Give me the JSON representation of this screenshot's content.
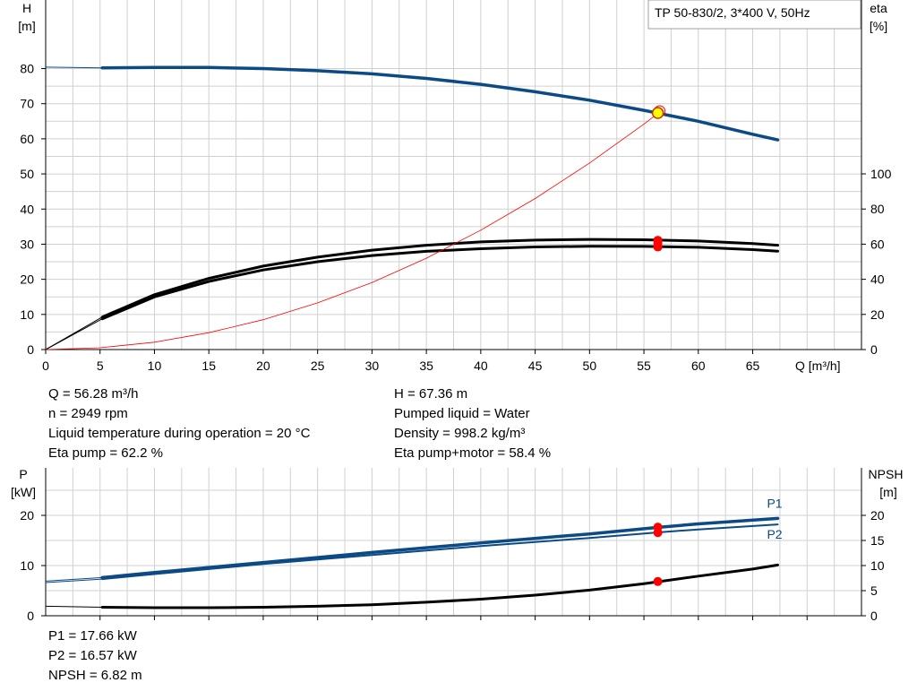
{
  "colors": {
    "head_curve": "#0c4a86",
    "efficiency_curve": "#000000",
    "power_curve": "#0c4a86",
    "npsh_curve": "#000000",
    "system_curve": "#ff0000",
    "grid": "#d0d0d0",
    "marker_fill": "#ff0000",
    "duty_point_fill": "#ffff00"
  },
  "info_top_left": [
    "Q = 56.28 m³/h",
    "n = 2949 rpm",
    "Liquid temperature during operation = 20 °C",
    "Eta pump = 62.2 %"
  ],
  "info_top_right": [
    "H = 67.36 m",
    "Pumped liquid = Water",
    "Density = 998.2 kg/m³",
    "Eta pump+motor = 58.4 %"
  ],
  "info_bottom": [
    "P1 = 17.66 kW",
    "P2 = 16.57 kW",
    "NPSH = 6.82 m"
  ],
  "chart_data": [
    {
      "type": "line",
      "title": "TP 50-830/2, 3*400 V, 50Hz",
      "left_axis_name": "H",
      "left_axis_unit": "[m]",
      "right_axis_name": "eta",
      "right_axis_unit": "[%]",
      "xlabel": "Q [m³/h]",
      "xlim": [
        0,
        75
      ],
      "ylim_left": [
        0,
        80
      ],
      "ylim_right": [
        0,
        100
      ],
      "x_ticks": [
        0,
        5,
        10,
        15,
        20,
        25,
        30,
        35,
        40,
        45,
        50,
        55,
        60,
        65
      ],
      "y_ticks_left": [
        0,
        10,
        20,
        30,
        40,
        50,
        60,
        70,
        80
      ],
      "y_ticks_right": [
        0,
        20,
        40,
        60,
        80,
        100
      ],
      "grid": true,
      "series": [
        {
          "key": "H",
          "axis": "left",
          "color_key": "head_curve",
          "width": 3.5,
          "x": [
            0,
            5.2,
            10,
            15,
            20,
            25,
            30,
            35,
            40,
            45,
            50,
            55,
            60,
            65,
            67.3
          ],
          "y": [
            80.4,
            80.2,
            80.3,
            80.3,
            80.0,
            79.4,
            78.5,
            77.2,
            75.5,
            73.4,
            71.0,
            68.1,
            65.0,
            61.3,
            59.7
          ]
        },
        {
          "key": "eta_pump",
          "axis": "right",
          "color_key": "efficiency_curve",
          "width": 3,
          "x": [
            0,
            5.2,
            10,
            15,
            20,
            25,
            30,
            35,
            40,
            45,
            50,
            55,
            60,
            65,
            67.3
          ],
          "y": [
            0,
            18.5,
            31.2,
            40.5,
            47.5,
            52.6,
            56.6,
            59.4,
            61.3,
            62.3,
            62.7,
            62.5,
            61.8,
            60.3,
            59.4
          ]
        },
        {
          "key": "eta_pump_motor",
          "axis": "right",
          "color_key": "efficiency_curve",
          "width": 3,
          "x": [
            0,
            5.2,
            10,
            15,
            20,
            25,
            30,
            35,
            40,
            45,
            50,
            55,
            60,
            65,
            67.3
          ],
          "y": [
            0,
            17.5,
            30.0,
            38.8,
            45.3,
            50.0,
            53.5,
            55.9,
            57.4,
            58.4,
            58.8,
            58.7,
            58.2,
            56.9,
            56.0
          ]
        },
        {
          "key": "system_curve",
          "axis": "left",
          "color_key": "system_curve",
          "width": 0.8,
          "x": [
            0,
            5,
            10,
            15,
            20,
            25,
            30,
            35,
            40,
            45,
            50,
            55,
            56.6
          ],
          "y": [
            0,
            0.5,
            2.1,
            4.8,
            8.5,
            13.3,
            19.1,
            26.0,
            34.0,
            43.0,
            53.1,
            64.2,
            68.0
          ]
        }
      ],
      "markers": [
        {
          "axis": "left",
          "x": 56.28,
          "y": 67.36,
          "style": "duty"
        },
        {
          "axis": "right",
          "x": 56.28,
          "y": 62.2,
          "style": "dot"
        },
        {
          "axis": "right",
          "x": 56.28,
          "y": 60.5,
          "style": "dot"
        },
        {
          "axis": "right",
          "x": 56.28,
          "y": 58.4,
          "style": "dot"
        }
      ]
    },
    {
      "type": "line",
      "left_axis_name": "P",
      "left_axis_unit": "[kW]",
      "right_axis_name": "NPSH",
      "right_axis_unit": "[m]",
      "xlim": [
        0,
        75
      ],
      "ylim_left": [
        0,
        25
      ],
      "ylim_right": [
        0,
        25
      ],
      "y_ticks_left": [
        0,
        10,
        20
      ],
      "y_ticks_right": [
        0,
        5,
        10,
        15,
        20
      ],
      "grid": true,
      "series": [
        {
          "key": "P1",
          "name": "P1",
          "axis": "left",
          "color_key": "power_curve",
          "width": 3.5,
          "x": [
            0,
            5.2,
            10,
            20,
            30,
            40,
            50,
            56.3,
            60,
            67.3
          ],
          "y": [
            6.9,
            7.6,
            8.6,
            10.6,
            12.6,
            14.5,
            16.3,
            17.6,
            18.3,
            19.4
          ]
        },
        {
          "key": "P2",
          "name": "P2",
          "axis": "left",
          "color_key": "power_curve",
          "width": 2,
          "x": [
            0,
            5.2,
            10,
            20,
            30,
            40,
            50,
            56.3,
            60,
            67.3
          ],
          "y": [
            6.6,
            7.3,
            8.3,
            10.3,
            12.1,
            13.9,
            15.5,
            16.6,
            17.2,
            18.2
          ]
        },
        {
          "key": "NPSH",
          "axis": "right",
          "color_key": "npsh_curve",
          "width": 3,
          "x": [
            0,
            5.2,
            10,
            15,
            20,
            25,
            30,
            35,
            40,
            45,
            50,
            55,
            60,
            65,
            67.3
          ],
          "y": [
            1.9,
            1.7,
            1.6,
            1.6,
            1.7,
            1.9,
            2.2,
            2.7,
            3.3,
            4.1,
            5.1,
            6.4,
            7.9,
            9.3,
            10.1
          ]
        }
      ],
      "markers": [
        {
          "axis": "left",
          "x": 56.28,
          "y": 17.66,
          "style": "dot"
        },
        {
          "axis": "left",
          "x": 56.28,
          "y": 16.57,
          "style": "dot"
        },
        {
          "axis": "right",
          "x": 56.28,
          "y": 6.82,
          "style": "dot"
        }
      ]
    }
  ]
}
